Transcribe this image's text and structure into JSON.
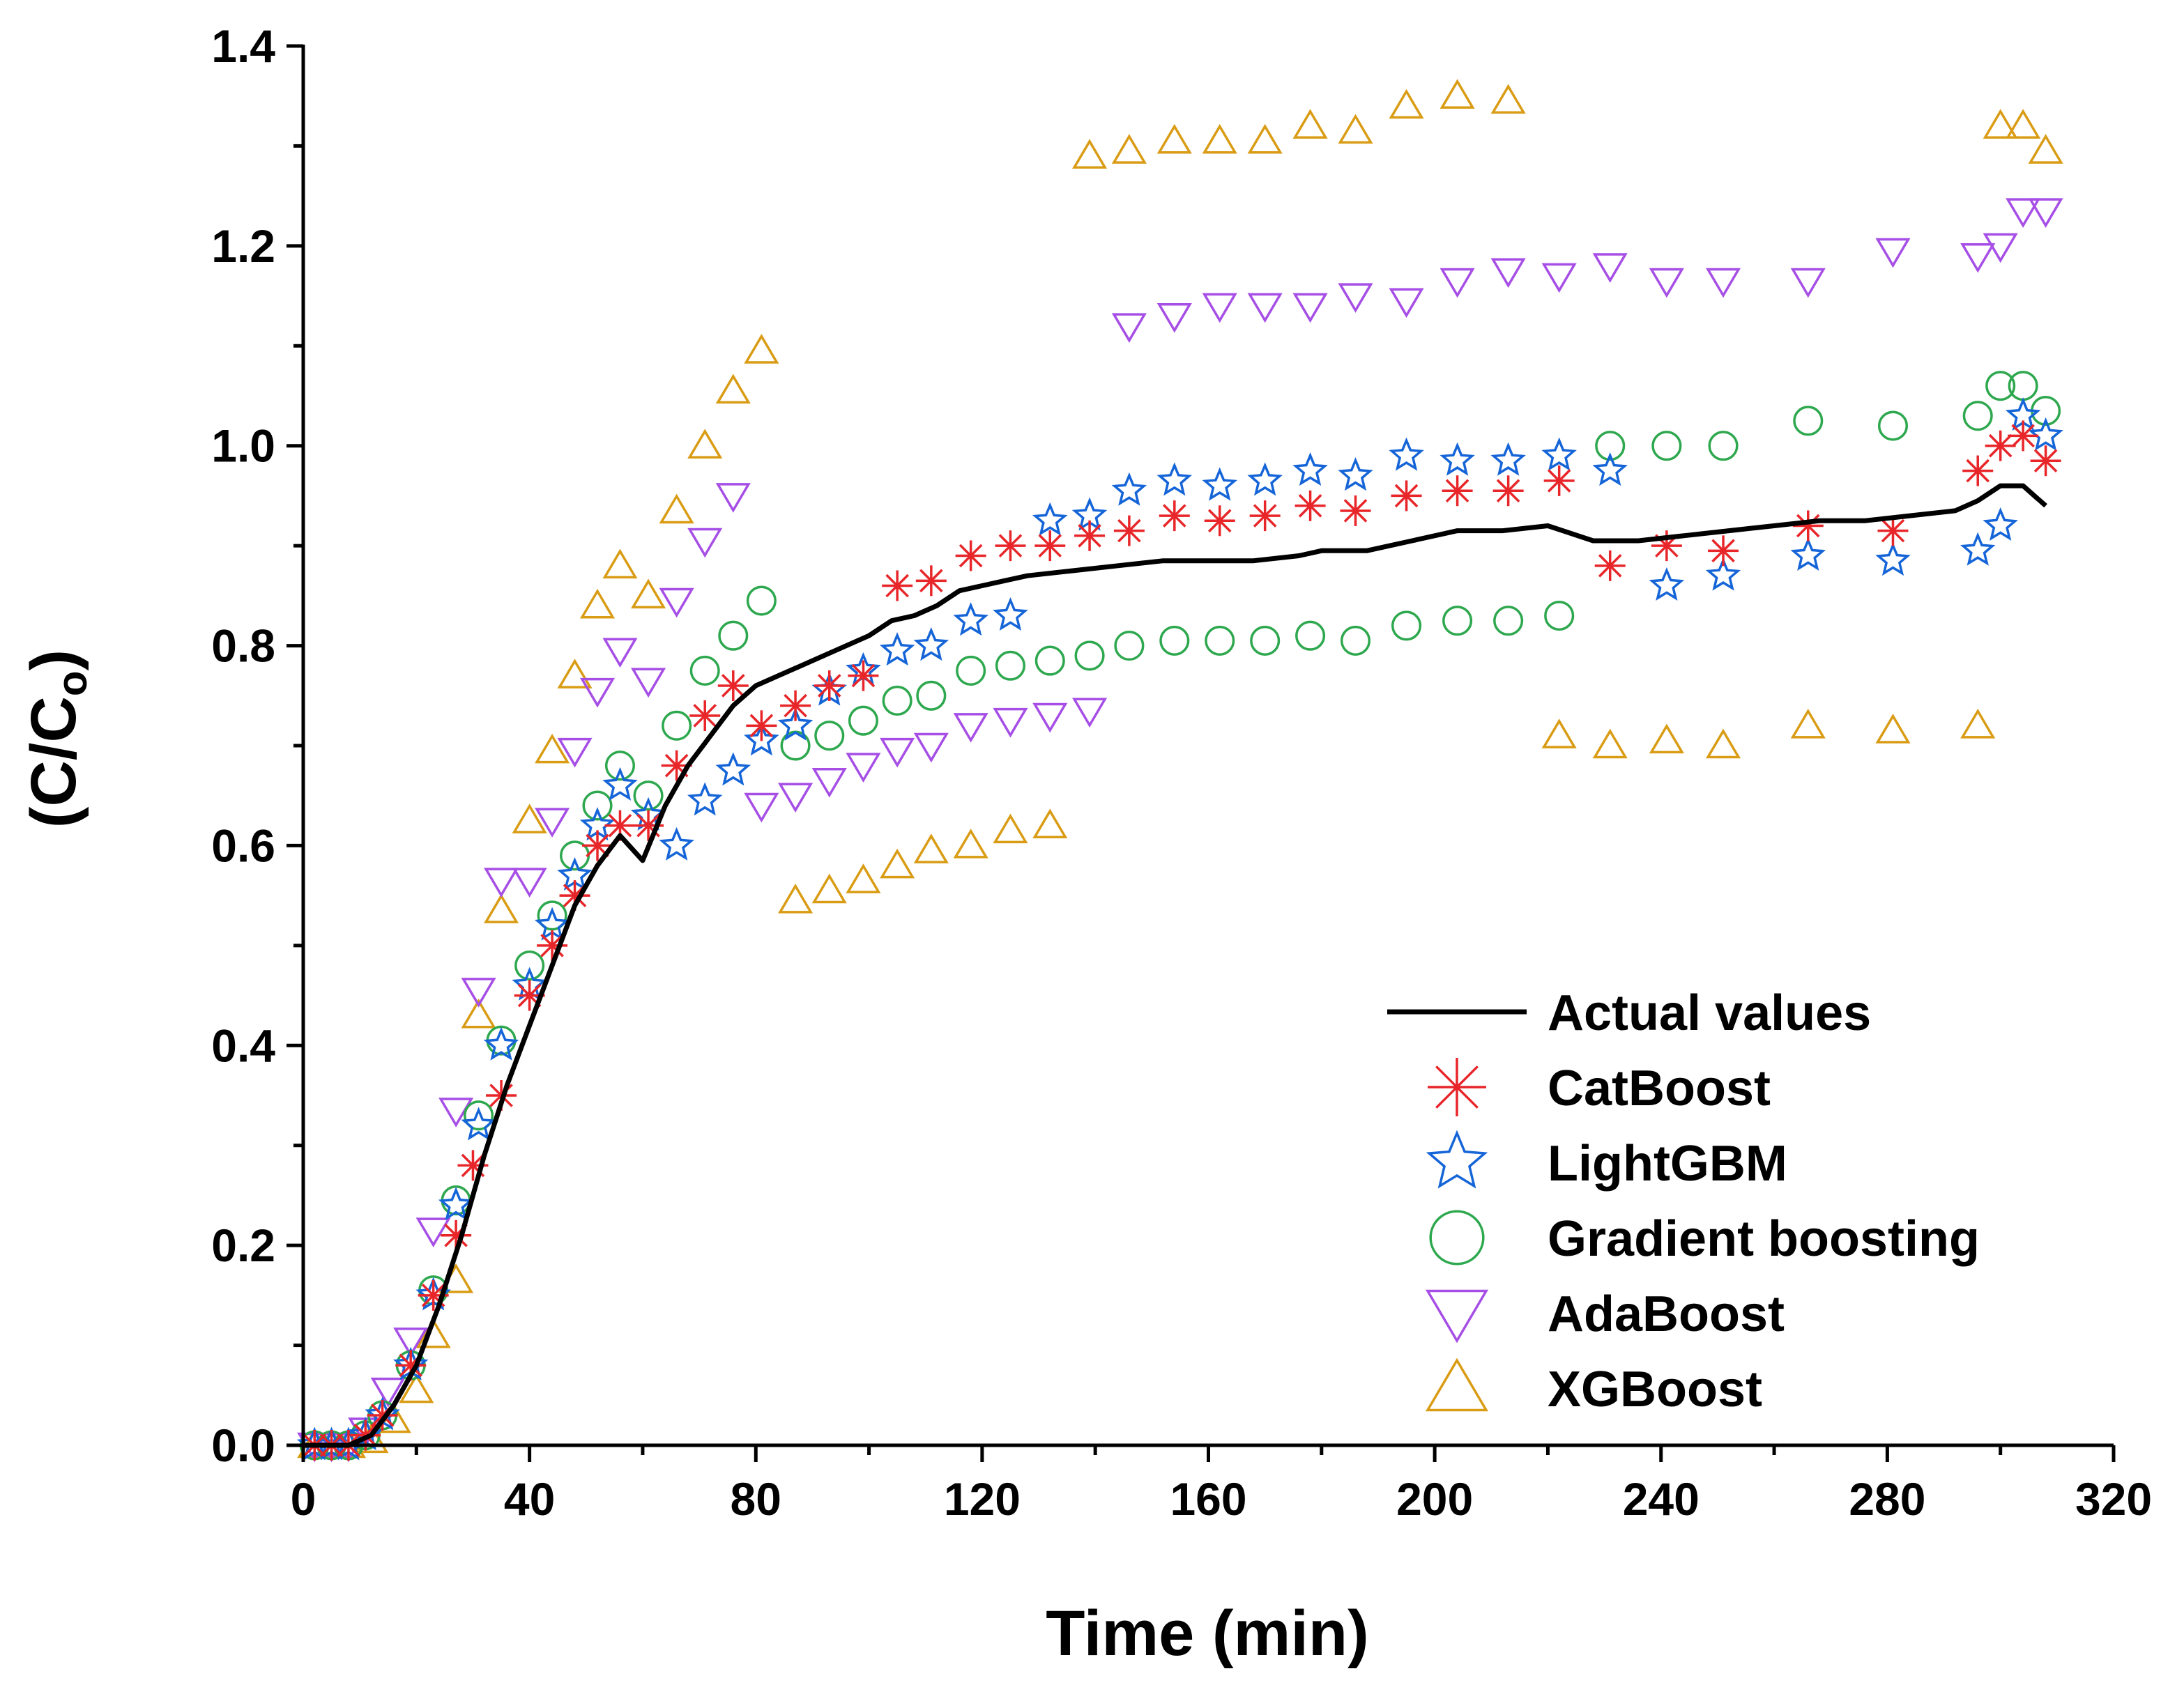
{
  "chart_data": {
    "type": "scatter",
    "title": "",
    "xlabel": "Time (min)",
    "ylabel_main": "(C/C",
    "ylabel_sub": "o",
    "ylabel_close": ")",
    "xlim": [
      0,
      320
    ],
    "ylim": [
      0,
      1.4
    ],
    "x_ticks": [
      "0",
      "40",
      "80",
      "120",
      "160",
      "200",
      "240",
      "280",
      "320"
    ],
    "y_ticks": [
      "0.0",
      "0.2",
      "0.4",
      "0.6",
      "0.8",
      "1.0",
      "1.2",
      "1.4"
    ],
    "legend_position": "bottom-right",
    "series": [
      {
        "name": "Actual values",
        "kind": "line",
        "color": "#000000",
        "x": [
          0,
          4,
          8,
          12,
          16,
          20,
          24,
          28,
          32,
          36,
          40,
          44,
          48,
          52,
          56,
          60,
          64,
          68,
          72,
          76,
          80,
          84,
          88,
          92,
          96,
          100,
          104,
          108,
          112,
          116,
          120,
          124,
          128,
          136,
          144,
          152,
          160,
          168,
          176,
          180,
          188,
          196,
          204,
          212,
          220,
          228,
          236,
          244,
          252,
          260,
          268,
          276,
          284,
          292,
          296,
          300,
          304,
          308
        ],
        "y": [
          0,
          0,
          0,
          0.01,
          0.04,
          0.08,
          0.14,
          0.21,
          0.29,
          0.36,
          0.42,
          0.48,
          0.54,
          0.58,
          0.61,
          0.585,
          0.64,
          0.68,
          0.71,
          0.74,
          0.76,
          0.77,
          0.78,
          0.79,
          0.8,
          0.81,
          0.825,
          0.83,
          0.84,
          0.855,
          0.86,
          0.865,
          0.87,
          0.875,
          0.88,
          0.885,
          0.885,
          0.885,
          0.89,
          0.895,
          0.895,
          0.905,
          0.915,
          0.915,
          0.92,
          0.905,
          0.905,
          0.91,
          0.915,
          0.92,
          0.925,
          0.925,
          0.93,
          0.935,
          0.945,
          0.96,
          0.96,
          0.94
        ]
      },
      {
        "name": "CatBoost",
        "kind": "asterisk",
        "color": "#e8262a",
        "x": [
          2,
          5,
          8,
          11,
          14,
          19,
          23,
          27,
          30,
          35,
          40,
          44,
          48,
          52,
          56,
          61,
          66,
          71,
          76,
          81,
          87,
          93,
          99,
          105,
          111,
          118,
          125,
          132,
          139,
          146,
          154,
          162,
          170,
          178,
          186,
          195,
          204,
          213,
          222,
          231,
          241,
          251,
          266,
          281,
          296,
          300,
          304,
          308
        ],
        "y": [
          0,
          0,
          0,
          0.01,
          0.03,
          0.08,
          0.15,
          0.21,
          0.28,
          0.35,
          0.45,
          0.5,
          0.55,
          0.6,
          0.62,
          0.62,
          0.68,
          0.73,
          0.76,
          0.72,
          0.74,
          0.76,
          0.77,
          0.86,
          0.865,
          0.89,
          0.9,
          0.9,
          0.91,
          0.915,
          0.93,
          0.925,
          0.93,
          0.94,
          0.935,
          0.95,
          0.955,
          0.955,
          0.965,
          0.88,
          0.9,
          0.895,
          0.92,
          0.915,
          0.975,
          1.0,
          1.01,
          0.985
        ]
      },
      {
        "name": "LightGBM",
        "kind": "star",
        "color": "#1565d8",
        "x": [
          2,
          5,
          8,
          11,
          14,
          19,
          23,
          27,
          31,
          35,
          40,
          44,
          48,
          52,
          56,
          61,
          66,
          71,
          76,
          81,
          87,
          93,
          99,
          105,
          111,
          118,
          125,
          132,
          139,
          146,
          154,
          162,
          170,
          178,
          186,
          195,
          204,
          213,
          222,
          231,
          241,
          251,
          266,
          281,
          296,
          300,
          304,
          308
        ],
        "y": [
          0,
          0,
          0,
          0.01,
          0.03,
          0.08,
          0.15,
          0.24,
          0.32,
          0.4,
          0.46,
          0.52,
          0.57,
          0.62,
          0.66,
          0.63,
          0.6,
          0.645,
          0.675,
          0.705,
          0.72,
          0.755,
          0.775,
          0.795,
          0.8,
          0.825,
          0.83,
          0.925,
          0.93,
          0.955,
          0.965,
          0.96,
          0.965,
          0.975,
          0.97,
          0.99,
          0.985,
          0.985,
          0.99,
          0.975,
          0.86,
          0.87,
          0.89,
          0.885,
          0.895,
          0.92,
          1.03,
          1.01
        ]
      },
      {
        "name": "Gradient boosting",
        "kind": "circle",
        "color": "#2ea84e",
        "x": [
          2,
          5,
          8,
          11,
          14,
          19,
          23,
          27,
          31,
          35,
          40,
          44,
          48,
          52,
          56,
          61,
          66,
          71,
          76,
          81,
          87,
          93,
          99,
          105,
          111,
          118,
          125,
          132,
          139,
          146,
          154,
          162,
          170,
          178,
          186,
          195,
          204,
          213,
          222,
          231,
          241,
          251,
          266,
          281,
          296,
          300,
          304,
          308
        ],
        "y": [
          0,
          0,
          0,
          0.01,
          0.03,
          0.08,
          0.155,
          0.245,
          0.33,
          0.405,
          0.48,
          0.53,
          0.59,
          0.64,
          0.68,
          0.65,
          0.72,
          0.775,
          0.81,
          0.845,
          0.7,
          0.71,
          0.725,
          0.745,
          0.75,
          0.775,
          0.78,
          0.785,
          0.79,
          0.8,
          0.805,
          0.805,
          0.805,
          0.81,
          0.805,
          0.82,
          0.825,
          0.825,
          0.83,
          1.0,
          1.0,
          1.0,
          1.025,
          1.02,
          1.03,
          1.06,
          1.06,
          1.035
        ]
      },
      {
        "name": "AdaBoost",
        "kind": "triangle-down",
        "color": "#a64ee6",
        "x": [
          2,
          5,
          8,
          11,
          15,
          19,
          23,
          27,
          31,
          35,
          40,
          44,
          48,
          52,
          56,
          61,
          66,
          71,
          76,
          81,
          87,
          93,
          99,
          105,
          111,
          118,
          125,
          132,
          139,
          146,
          154,
          162,
          170,
          178,
          186,
          195,
          204,
          213,
          222,
          231,
          241,
          251,
          266,
          281,
          296,
          300,
          304,
          308
        ],
        "y": [
          0,
          0,
          0,
          0.015,
          0.055,
          0.105,
          0.215,
          0.335,
          0.455,
          0.565,
          0.565,
          0.625,
          0.695,
          0.755,
          0.795,
          0.765,
          0.845,
          0.905,
          0.95,
          0.64,
          0.65,
          0.665,
          0.68,
          0.695,
          0.7,
          0.72,
          0.725,
          0.73,
          0.735,
          1.12,
          1.13,
          1.14,
          1.14,
          1.14,
          1.15,
          1.145,
          1.165,
          1.175,
          1.17,
          1.18,
          1.165,
          1.165,
          1.165,
          1.195,
          1.19,
          1.2,
          1.235,
          1.235
        ]
      },
      {
        "name": "XGBoost",
        "kind": "triangle-up",
        "color": "#d99c14",
        "x": [
          2,
          5,
          8,
          12,
          16,
          20,
          23,
          27,
          31,
          35,
          40,
          44,
          48,
          52,
          56,
          61,
          66,
          71,
          76,
          81,
          87,
          93,
          99,
          105,
          111,
          118,
          125,
          132,
          139,
          146,
          154,
          162,
          170,
          178,
          186,
          195,
          204,
          213,
          222,
          231,
          241,
          251,
          266,
          281,
          296,
          300,
          304,
          308
        ],
        "y": [
          0,
          0,
          0,
          0.005,
          0.025,
          0.055,
          0.11,
          0.165,
          0.43,
          0.535,
          0.625,
          0.695,
          0.77,
          0.84,
          0.88,
          0.85,
          0.935,
          1.0,
          1.055,
          1.095,
          0.545,
          0.555,
          0.565,
          0.58,
          0.595,
          0.6,
          0.615,
          0.62,
          1.29,
          1.295,
          1.305,
          1.305,
          1.305,
          1.32,
          1.315,
          1.34,
          1.35,
          1.345,
          0.71,
          0.7,
          0.705,
          0.7,
          0.72,
          0.715,
          0.72,
          1.32,
          1.32,
          1.295
        ]
      }
    ]
  }
}
